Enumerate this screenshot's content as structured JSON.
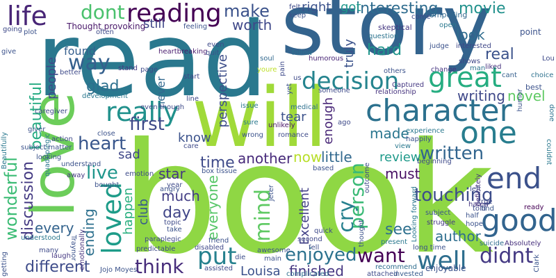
{
  "words": {
    "read": {
      "text": "read",
      "color": "#2a788e"
    },
    "story": {
      "text": "story",
      "color": "#33638d"
    },
    "will": {
      "text": "will",
      "color": "#a0da39"
    },
    "book": {
      "text": "book",
      "color": "#8fd744"
    },
    "love": {
      "text": "love",
      "color": "#6ccd5a"
    },
    "life": {
      "text": "life",
      "color": "#482576"
    },
    "dont": {
      "text": "dont",
      "color": "#4ac16d"
    },
    "reading": {
      "text": "reading",
      "color": "#440154"
    },
    "make": {
      "text": "make",
      "color": "#3b528b"
    },
    "interesting": {
      "text": "interesting",
      "color": "#2f6c8e"
    },
    "movie": {
      "text": "movie",
      "color": "#21918c"
    },
    "right": {
      "text": "right",
      "color": "#3b528b"
    },
    "got": {
      "text": "got",
      "color": "#1f988b"
    },
    "still": {
      "text": "still",
      "color": "#404688"
    },
    "worth": {
      "text": "worth",
      "color": "#3f4889"
    },
    "decision": {
      "text": "decision",
      "color": "#25848e"
    },
    "great": {
      "text": "great",
      "color": "#26ad81"
    },
    "character": {
      "text": "character",
      "color": "#2c718e"
    },
    "one": {
      "text": "one",
      "color": "#287d8e"
    },
    "end": {
      "text": "end",
      "color": "#3b518b"
    },
    "good": {
      "text": "good",
      "color": "#32648e"
    },
    "well": {
      "text": "well",
      "color": "#2e6e8e"
    },
    "didnt": {
      "text": "didnt",
      "color": "#443983"
    },
    "really": {
      "text": "really",
      "color": "#21918c"
    },
    "first": {
      "text": "first",
      "color": "#3e4a89"
    },
    "loved": {
      "text": "loved",
      "color": "#1e9c89"
    },
    "way": {
      "text": "way",
      "color": "#34608d"
    },
    "glad": {
      "text": "glad",
      "color": "#2d708e"
    },
    "found": {
      "text": "found",
      "color": "#355f8d"
    },
    "people": {
      "text": "people",
      "color": "#3e4a89"
    },
    "beautiful": {
      "text": "beautiful",
      "color": "#25ab82"
    },
    "heart": {
      "text": "heart",
      "color": "#39568c"
    },
    "wonderful": {
      "text": "wonderful",
      "color": "#3cbc75"
    },
    "discussion": {
      "text": "discussion",
      "color": "#443a83"
    },
    "live": {
      "text": "live",
      "color": "#1f968b"
    },
    "ending": {
      "text": "ending",
      "color": "#2d708e"
    },
    "every": {
      "text": "every",
      "color": "#33638d"
    },
    "think": {
      "text": "think",
      "color": "#472d7b"
    },
    "put": {
      "text": "put",
      "color": "#26818e"
    },
    "enjoyed": {
      "text": "enjoyed",
      "color": "#2c728e"
    },
    "want": {
      "text": "want",
      "color": "#440154"
    },
    "louisa": {
      "text": "Louisa",
      "color": "#3b518b"
    },
    "finished": {
      "text": "finished",
      "color": "#453581"
    },
    "different": {
      "text": "different",
      "color": "#3e4c8a"
    },
    "mind": {
      "text": "mind",
      "color": "#5ec962"
    },
    "cry": {
      "text": "cry",
      "color": "#27808e"
    },
    "person": {
      "text": "person",
      "color": "#3aba76"
    },
    "see": {
      "text": "see",
      "color": "#2d708e"
    },
    "author": {
      "text": "author",
      "color": "#2e6e8e"
    },
    "touching": {
      "text": "touching",
      "color": "#3d4d8a"
    },
    "written": {
      "text": "written",
      "color": "#32658e"
    },
    "novel": {
      "text": "novel",
      "color": "#5ec962"
    },
    "writing": {
      "text": "writing",
      "color": "#3f4889"
    },
    "real": {
      "text": "real",
      "color": "#3b528b"
    },
    "look": {
      "text": "look",
      "color": "#2f6c8e"
    },
    "hard": {
      "text": "hard",
      "color": "#1f958b"
    },
    "truly": {
      "text": "truly",
      "color": "#3b528b"
    },
    "perspective": {
      "text": "perspective",
      "color": "#3d4e8a"
    },
    "enough": {
      "text": "enough",
      "color": "#482677"
    },
    "now": {
      "text": "now",
      "color": "#b8de29"
    },
    "little": {
      "text": "little",
      "color": "#31688e"
    },
    "made": {
      "text": "made",
      "color": "#2a768e"
    },
    "review": {
      "text": "review",
      "color": "#1f9a8a"
    },
    "must": {
      "text": "must",
      "color": "#471063"
    },
    "time": {
      "text": "time",
      "color": "#3e4a89"
    },
    "another": {
      "text": "another",
      "color": "#472a7a"
    },
    "everyone": {
      "text": "everyone",
      "color": "#56c667"
    },
    "much": {
      "text": "much",
      "color": "#433e85"
    },
    "day": {
      "text": "day",
      "color": "#404588"
    },
    "star": {
      "text": "star",
      "color": "#453882"
    },
    "know": {
      "text": "know",
      "color": "#3b528b"
    },
    "sad": {
      "text": "sad",
      "color": "#3f4788"
    },
    "happen": {
      "text": "happen",
      "color": "#29af7f"
    },
    "club": {
      "text": "club",
      "color": "#375a8c"
    },
    "tear": {
      "text": "tear",
      "color": "#3b518b"
    },
    "excellent": {
      "text": "Excellent",
      "color": "#424086"
    },
    "never": {
      "text": "never",
      "color": "#31688e"
    },
    "thought_provoking": {
      "text": "Thought provoking",
      "color": "#481769"
    },
    "skeptical": {
      "text": "skeptical",
      "color": "#453781"
    },
    "compelling": {
      "text": "compelling",
      "color": "#31678e"
    },
    "question": {
      "text": "question",
      "color": "#2c738e"
    },
    "interested": {
      "text": "interested",
      "color": "#3f4788"
    },
    "point": {
      "text": "point",
      "color": "#3b528b"
    },
    "captured": {
      "text": "Captured",
      "color": "#453882"
    },
    "relationship": {
      "text": "relationship",
      "color": "#46337e"
    },
    "humorous": {
      "text": "humorous",
      "color": "#482576"
    },
    "medical": {
      "text": "medical",
      "color": "#2d708e"
    },
    "unlikely": {
      "text": "unlikely",
      "color": "#481467"
    },
    "soul": {
      "text": "soul",
      "color": "#31688e"
    },
    "youre": {
      "text": "youre",
      "color": "#bddf26"
    },
    "follow": {
      "text": "follow",
      "color": "#2d718e"
    },
    "heartbreaking": {
      "text": "heartbreaking",
      "color": "#481a6c"
    },
    "stand": {
      "text": "stand",
      "color": "#443983"
    },
    "page": {
      "text": "page",
      "color": "#3e4a89"
    },
    "start": {
      "text": "start",
      "color": "#404688"
    },
    "liked": {
      "text": "liked",
      "color": "#46327e"
    },
    "shows": {
      "text": "shows",
      "color": "#3f4788"
    },
    "change": {
      "text": "change",
      "color": "#453581"
    },
    "man": {
      "text": "man",
      "color": "#2c738e"
    },
    "cant": {
      "text": "cant",
      "color": "#355f8d"
    },
    "choice": {
      "text": "choice",
      "color": "#2d718e"
    },
    "best": {
      "text": "best",
      "color": "#3b528b"
    },
    "lou": {
      "text": "Lou",
      "color": "#3e4a89"
    },
    "couldnt": {
      "text": "couldnt",
      "color": "#2a788e"
    },
    "done": {
      "text": "done",
      "color": "#2c728e"
    },
    "definitely": {
      "text": "definitely",
      "color": "#46317e"
    },
    "left": {
      "text": "left",
      "color": "#3f4889"
    },
    "ready": {
      "text": "ready",
      "color": "#440154"
    },
    "told": {
      "text": "told",
      "color": "#3e4a89"
    },
    "find": {
      "text": "find",
      "color": "#39568c"
    },
    "half": {
      "text": "half",
      "color": "#3b528b"
    },
    "hated": {
      "text": "hated",
      "color": "#453882"
    },
    "hope": {
      "text": "hope",
      "color": "#3b528b"
    },
    "subject": {
      "text": "subject",
      "color": "#3b528b"
    },
    "struggle": {
      "text": "struggle",
      "color": "#443a83"
    },
    "suicide": {
      "text": "suicide",
      "color": "#2f6c8e"
    },
    "absolutely": {
      "text": "Absolutely",
      "color": "#462f7c"
    },
    "clark": {
      "text": "Clark",
      "color": "#3a548c"
    },
    "long_time": {
      "text": "long time",
      "color": "#3b528b"
    },
    "looking_forward": {
      "text": "Looking forward",
      "color": "#2a778e"
    },
    "enjoyable": {
      "text": "enjoyable",
      "color": "#3b528b"
    },
    "recommend": {
      "text": "recommend",
      "color": "#2e6d8e"
    },
    "attached": {
      "text": "attached",
      "color": "#3e4a89"
    },
    "invested": {
      "text": "invested",
      "color": "#375b8d"
    },
    "complicated": {
      "text": "complicated",
      "color": "#2e6e8e"
    },
    "fell": {
      "text": "fell",
      "color": "#3d4e8a"
    },
    "second": {
      "text": "second",
      "color": "#3f4889"
    },
    "awesome": {
      "text": "awesome",
      "color": "#3b528b"
    },
    "die": {
      "text": "die",
      "color": "#3d4d8a"
    },
    "assisted": {
      "text": "assisted",
      "color": "#3e4a89"
    },
    "disabled": {
      "text": "disabled",
      "color": "#3f4889"
    },
    "friend": {
      "text": "friend",
      "color": "#3b528b"
    },
    "predictable": {
      "text": "predictable",
      "color": "#3e4a89"
    },
    "jojo_moyes": {
      "text": "Jojo Moyes",
      "color": "#3b528b"
    },
    "laugh": {
      "text": "laugh",
      "color": "#453882"
    },
    "many": {
      "text": "many",
      "color": "#3e4a89"
    },
    "understood": {
      "text": "understood",
      "color": "#2a788e"
    },
    "getting": {
      "text": "getting",
      "color": "#3b528b"
    },
    "traynor": {
      "text": "Traynor",
      "color": "#3b528b"
    },
    "emotionally": {
      "text": "emotionally",
      "color": "#46337e"
    },
    "close": {
      "text": "close",
      "color": "#3b528b"
    },
    "even_though": {
      "text": "even though",
      "color": "#3e4a89"
    },
    "emotion": {
      "text": "emotion",
      "color": "#3e4a89"
    },
    "bought": {
      "text": "bought",
      "color": "#3b528b"
    },
    "away": {
      "text": "away",
      "color": "#453882"
    },
    "box_tissue": {
      "text": "box tissue",
      "color": "#3b528b"
    },
    "year": {
      "text": "year",
      "color": "#3e4a89"
    },
    "angry": {
      "text": "angry",
      "color": "#3b528b"
    },
    "topic": {
      "text": "topic",
      "color": "#3e4a89"
    },
    "take": {
      "text": "take",
      "color": "#3b528b"
    },
    "care": {
      "text": "care",
      "color": "#3e4a89"
    },
    "wrong": {
      "text": "wrong",
      "color": "#3b528b"
    },
    "sure": {
      "text": "sure",
      "color": "#2a788e"
    },
    "caregiver": {
      "text": "caregiver",
      "color": "#3e4a89"
    },
    "giver": {
      "text": "giver",
      "color": "#3b528b"
    },
    "quadriplegic": {
      "text": "quadriplegic",
      "color": "#2a788e"
    },
    "paraplegic": {
      "text": "paraplegic",
      "color": "#3e4a89"
    },
    "plot": {
      "text": "plot",
      "color": "#3b528b"
    },
    "going": {
      "text": "going",
      "color": "#3e4a89"
    },
    "give": {
      "text": "give",
      "color": "#3b528b"
    },
    "often": {
      "text": "often",
      "color": "#3e4a89"
    },
    "feeling": {
      "text": "feeling",
      "color": "#3b528b"
    },
    "felt": {
      "text": "felt",
      "color": "#3e4a89"
    },
    "keep": {
      "text": "keep",
      "color": "#3b528b"
    },
    "come": {
      "text": "come",
      "color": "#3e4a89"
    },
    "open": {
      "text": "open",
      "color": "#2a788e"
    },
    "judge": {
      "text": "judge",
      "color": "#3b528b"
    },
    "us": {
      "text": "us",
      "color": "#3e4a89"
    },
    "others": {
      "text": "others",
      "color": "#3b528b"
    },
    "better": {
      "text": "better",
      "color": "#3e4a89"
    },
    "development": {
      "text": "development",
      "color": "#2a788e"
    },
    "beautifully": {
      "text": "Beautifully",
      "color": "#2a788e"
    },
    "looking": {
      "text": "looking",
      "color": "#3b528b"
    },
    "action": {
      "text": "action",
      "color": "#3e4a89"
    },
    "subject_matter": {
      "text": "subject matter",
      "color": "#3b528b"
    },
    "ago": {
      "text": "ago",
      "color": "#3e4a89"
    },
    "issue": {
      "text": "issue",
      "color": "#2a788e"
    },
    "romance": {
      "text": "romance",
      "color": "#3e4a89"
    },
    "based": {
      "text": "based",
      "color": "#3b528b"
    },
    "outcome": {
      "text": "outcome",
      "color": "#3e4a89"
    },
    "happily": {
      "text": "happily",
      "color": "#3b528b"
    },
    "view": {
      "text": "view",
      "color": "#2a788e"
    },
    "beginning": {
      "text": "beginning",
      "color": "#3e4a89"
    },
    "experience": {
      "text": "experience",
      "color": "#2a788e"
    },
    "understand": {
      "text": "understand",
      "color": "#3b528b"
    },
    "line": {
      "text": "line",
      "color": "#3e4a89"
    },
    "main": {
      "text": "main",
      "color": "#3b528b"
    },
    "present": {
      "text": "present",
      "color": "#2a788e"
    },
    "quick": {
      "text": "quick",
      "color": "#3e4a89"
    },
    "jeter": {
      "text": "Jeter",
      "color": "#3b528b"
    },
    "pain": {
      "text": "pain",
      "color": "#3e4a89"
    },
    "yet": {
      "text": "yet",
      "color": "#3b528b"
    },
    "someone": {
      "text": "someone",
      "color": "#3e4a89"
    },
    "humor": {
      "text": "humor",
      "color": "#3b528b"
    },
    "true": {
      "text": "true",
      "color": "#3e4a89"
    },
    "thought": {
      "text": "thought",
      "color": "#3b528b"
    },
    "even": {
      "text": "even",
      "color": "#3e4a89"
    },
    "quit": {
      "text": "quit",
      "color": "#3b528b"
    }
  }
}
